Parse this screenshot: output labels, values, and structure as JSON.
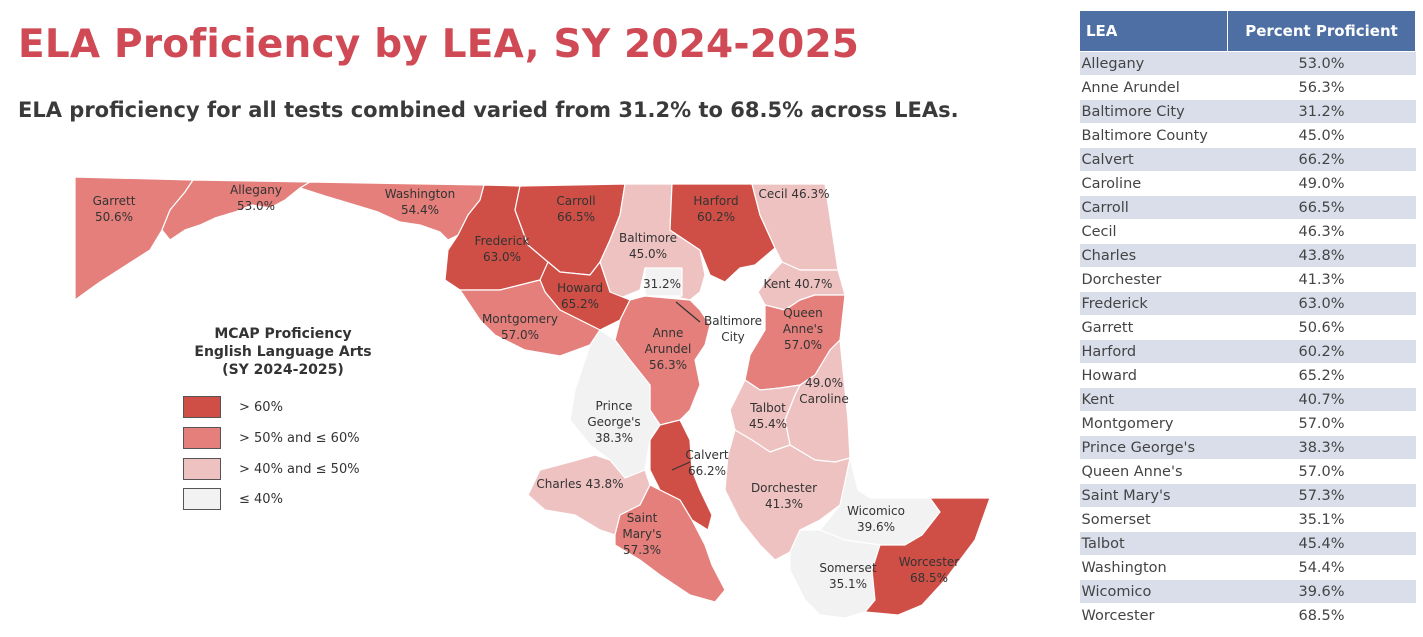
{
  "title": "ELA Proficiency by LEA, SY 2024-2025",
  "subtitle": "ELA proficiency for all tests combined varied from 31.2% to 68.5% across LEAs.",
  "colors": {
    "gt60": "#cf4f46",
    "gt50": "#e47f7b",
    "gt40": "#efc2c2",
    "le40": "#f2f2f2",
    "title": "#cf4a55",
    "table_header": "#4e6fa3",
    "table_stripe": "#d9deea"
  },
  "legend": {
    "title_lines": [
      "MCAP Proficiency",
      "English Language Arts",
      "(SY 2024-2025)"
    ],
    "items": [
      {
        "label": "> 60%",
        "color": "#cf4f46"
      },
      {
        "label": "> 50% and ≤ 60%",
        "color": "#e47f7b"
      },
      {
        "label": "> 40% and ≤ 50%",
        "color": "#efc2c2"
      },
      {
        "label": "≤ 40%",
        "color": "#f2f2f2"
      }
    ]
  },
  "map_labels": {
    "garrett": [
      "Garrett",
      "50.6%"
    ],
    "allegany": [
      "Allegany",
      "53.0%"
    ],
    "washington": [
      "Washington",
      "54.4%"
    ],
    "frederick": [
      "Frederick",
      "63.0%"
    ],
    "carroll": [
      "Carroll",
      "66.5%"
    ],
    "harford": [
      "Harford",
      "60.2%"
    ],
    "cecil": [
      "Cecil 46.3%"
    ],
    "baltimore": [
      "Baltimore",
      "45.0%"
    ],
    "baltimore_city_pct": [
      "31.2%"
    ],
    "baltimore_city": [
      "Baltimore",
      "City"
    ],
    "howard": [
      "Howard",
      "65.2%"
    ],
    "kent": [
      "Kent 40.7%"
    ],
    "queen_annes": [
      "Queen",
      "Anne's",
      "57.0%"
    ],
    "montgomery": [
      "Montgomery",
      "57.0%"
    ],
    "anne_arundel": [
      "Anne",
      "Arundel",
      "56.3%"
    ],
    "caroline": [
      "49.0%",
      "Caroline"
    ],
    "talbot": [
      "Talbot",
      "45.4%"
    ],
    "prince_georges": [
      "Prince",
      "George's",
      "38.3%"
    ],
    "calvert": [
      "Calvert",
      "66.2%"
    ],
    "charles": [
      "Charles 43.8%"
    ],
    "dorchester": [
      "Dorchester",
      "41.3%"
    ],
    "saint_marys": [
      "Saint",
      "Mary's",
      "57.3%"
    ],
    "wicomico": [
      "Wicomico",
      "39.6%"
    ],
    "somerset": [
      "Somerset",
      "35.1%"
    ],
    "worcester": [
      "Worcester",
      "68.5%"
    ]
  },
  "table": {
    "headers": [
      "LEA",
      "Percent Proficient"
    ],
    "rows": [
      [
        "Allegany",
        "53.0%"
      ],
      [
        "Anne Arundel",
        "56.3%"
      ],
      [
        "Baltimore City",
        "31.2%"
      ],
      [
        "Baltimore County",
        "45.0%"
      ],
      [
        "Calvert",
        "66.2%"
      ],
      [
        "Caroline",
        "49.0%"
      ],
      [
        "Carroll",
        "66.5%"
      ],
      [
        "Cecil",
        "46.3%"
      ],
      [
        "Charles",
        "43.8%"
      ],
      [
        "Dorchester",
        "41.3%"
      ],
      [
        "Frederick",
        "63.0%"
      ],
      [
        "Garrett",
        "50.6%"
      ],
      [
        "Harford",
        "60.2%"
      ],
      [
        "Howard",
        "65.2%"
      ],
      [
        "Kent",
        "40.7%"
      ],
      [
        "Montgomery",
        "57.0%"
      ],
      [
        "Prince George's",
        "38.3%"
      ],
      [
        "Queen Anne's",
        "57.0%"
      ],
      [
        "Saint Mary's",
        "57.3%"
      ],
      [
        "Somerset",
        "35.1%"
      ],
      [
        "Talbot",
        "45.4%"
      ],
      [
        "Washington",
        "54.4%"
      ],
      [
        "Wicomico",
        "39.6%"
      ],
      [
        "Worcester",
        "68.5%"
      ]
    ]
  }
}
